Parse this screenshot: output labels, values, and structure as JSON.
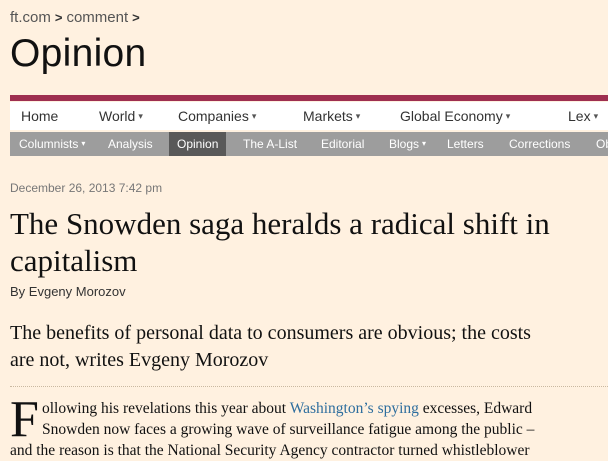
{
  "breadcrumb": {
    "items": [
      "ft.com",
      "comment"
    ],
    "separator": ">"
  },
  "page_title": "Opinion",
  "primary_nav": {
    "items": [
      {
        "label": "Home",
        "has_menu": false
      },
      {
        "label": "World",
        "has_menu": true
      },
      {
        "label": "Companies",
        "has_menu": true
      },
      {
        "label": "Markets",
        "has_menu": true
      },
      {
        "label": "Global Economy",
        "has_menu": true
      },
      {
        "label": "Lex",
        "has_menu": true
      }
    ]
  },
  "secondary_nav": {
    "items": [
      {
        "label": "Columnists",
        "has_menu": true,
        "active": false
      },
      {
        "label": "Analysis",
        "has_menu": false,
        "active": false
      },
      {
        "label": "Opinion",
        "has_menu": false,
        "active": true
      },
      {
        "label": "The A-List",
        "has_menu": false,
        "active": false
      },
      {
        "label": "Editorial",
        "has_menu": false,
        "active": false
      },
      {
        "label": "Blogs",
        "has_menu": true,
        "active": false
      },
      {
        "label": "Letters",
        "has_menu": false,
        "active": false
      },
      {
        "label": "Corrections",
        "has_menu": false,
        "active": false
      },
      {
        "label": "Ob",
        "has_menu": false,
        "active": false
      }
    ]
  },
  "article": {
    "date": "December 26, 2013 7:42 pm",
    "headline_line1": "The Snowden saga heralds a radical shift in",
    "headline_line2": "capitalism",
    "byline_prefix": "By",
    "author": "Evgeny Morozov",
    "standfirst_line1": "The benefits of personal data to consumers are obvious; the costs",
    "standfirst_line2": "are not, writes Evgeny Morozov",
    "dropcap": "F",
    "body_line1_a": "ollowing his revelations this year about ",
    "body_line1_link": "Washington’s spying",
    "body_line1_b": " excesses, Edward",
    "body_line2": "Snowden now faces a growing wave of surveillance fatigue among the public –",
    "body_line3": "and the reason is that the National Security Agency contractor turned whistleblower"
  },
  "colors": {
    "background": "#fff1e0",
    "accent_rule": "#9e2f50",
    "secondary_nav_bg": "#9d9d9d",
    "secondary_nav_active": "#595959",
    "link": "#2e6e9e"
  }
}
